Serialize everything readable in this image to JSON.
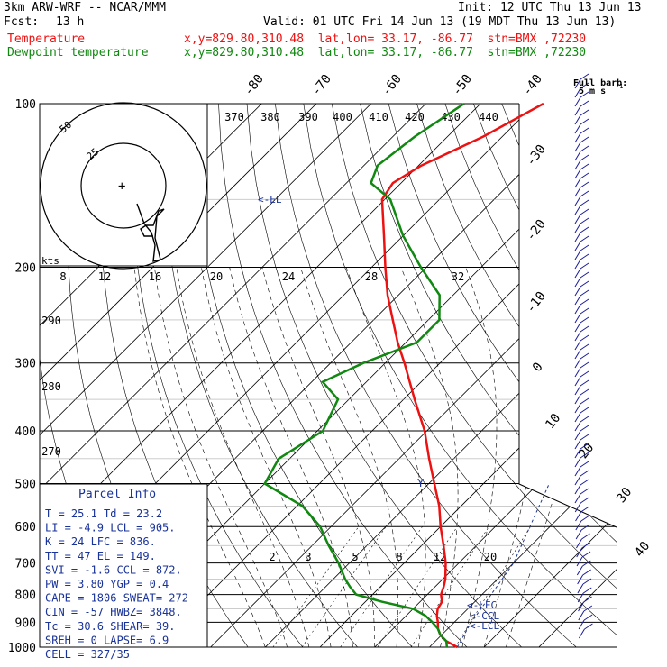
{
  "header": {
    "line1_left": "3km ARW-WRF -- NCAR/MMM",
    "line1_right": "Init: 12 UTC Thu 13 Jun 13",
    "fcst_label": "Fcst:",
    "fcst_value": "13 h",
    "valid": "Valid: 01 UTC Fri 14 Jun 13 (19 MDT Thu 13 Jun 13)",
    "temp_label": "Temperature",
    "temp_loc": "x,y=829.80,310.48  lat,lon= 33.17, -86.77  stn=BMX ,72230",
    "dew_label": "Dewpoint temperature",
    "dew_loc": "x,y=829.80,310.48  lat,lon= 33.17, -86.77  stn=BMX ,72230",
    "full_barb": "Full barb:",
    "full_barb_value": "5 m s",
    "full_barb_exp": "-1"
  },
  "colors": {
    "temperature": "#ee1111",
    "dewpoint": "#118811",
    "parcel": "#1a3399",
    "wind": "#1a1a99",
    "grid": "#000000"
  },
  "parcel_info": {
    "title": "Parcel Info",
    "rows": [
      "T    =   25.1  Td  = 23.2",
      "LI   =   -4.9  LCL = 905.",
      "K    =     24  LFC = 836.",
      "TT   =     47  EL  = 149.",
      "SVI  =   -1.6  CCL = 872.",
      "PW   =   3.80  YGP =  0.4",
      "CAPE =   1806  SWEAT= 272",
      "CIN  =    -57  HWBZ= 3848.",
      "Tc   =   30.6  SHEAR= 39.",
      "SREH =      0  LAPSE= 6.9",
      "CELL = 327/35"
    ]
  },
  "chart_data": {
    "type": "line",
    "title": "",
    "ylabel": "",
    "xlabel": "",
    "pressure_levels": [
      100,
      200,
      300,
      400,
      500,
      600,
      700,
      800,
      900,
      1000
    ],
    "isotherm_labels": [
      "-80",
      "-70",
      "-60",
      "-50",
      "-40",
      "-30",
      "-20",
      "-10",
      "0",
      "10",
      "20",
      "30",
      "40"
    ],
    "theta_labels_top": [
      "370",
      "380",
      "390",
      "400",
      "410",
      "420",
      "430",
      "440"
    ],
    "theta_labels_left": [
      "290",
      "280",
      "270"
    ],
    "mixing_ratio_labels": [
      "2",
      "3",
      "5",
      "8",
      "12",
      "20"
    ],
    "hodograph": {
      "unit_label": "kts",
      "ring_labels": [
        "25",
        "50"
      ],
      "axis_labels": [
        "8",
        "12",
        "16",
        "20",
        "24",
        "28",
        "32"
      ]
    },
    "level_labels": [
      "EL",
      "LFC",
      "CCL",
      "LCL"
    ],
    "series": [
      {
        "name": "Temperature",
        "p": [
          1000,
          975,
          950,
          925,
          900,
          875,
          850,
          825,
          800,
          775,
          750,
          700,
          650,
          600,
          550,
          500,
          450,
          400,
          350,
          300,
          275,
          250,
          225,
          200,
          175,
          150,
          140,
          130,
          115,
          100
        ],
        "t": [
          25.1,
          22.0,
          19.8,
          18.2,
          17.0,
          15.6,
          14.5,
          14.0,
          12.5,
          11.6,
          10.5,
          7.6,
          4.0,
          0.0,
          -4.0,
          -9.0,
          -14.5,
          -20.4,
          -28.0,
          -36.5,
          -41.5,
          -46.5,
          -52.0,
          -57.5,
          -63.5,
          -70.5,
          -71.5,
          -69.5,
          -63.5,
          -58.5
        ]
      },
      {
        "name": "Dewpoint temperature",
        "p": [
          1000,
          975,
          950,
          925,
          900,
          875,
          850,
          825,
          800,
          775,
          750,
          700,
          650,
          600,
          550,
          500,
          450,
          400,
          350,
          325,
          300,
          275,
          250,
          225,
          200,
          175,
          150,
          140,
          130,
          115,
          100
        ],
        "t": [
          23.2,
          22.0,
          19.8,
          18.2,
          16.0,
          13.5,
          10.0,
          3.0,
          -3.0,
          -5.5,
          -7.8,
          -12.0,
          -17.0,
          -22.0,
          -29.0,
          -40.0,
          -42.0,
          -39.0,
          -42.0,
          -48.0,
          -44.0,
          -38.0,
          -38.0,
          -42.5,
          -51.0,
          -60.0,
          -69.0,
          -75.5,
          -77.5,
          -76.0,
          -73.0
        ]
      }
    ]
  }
}
